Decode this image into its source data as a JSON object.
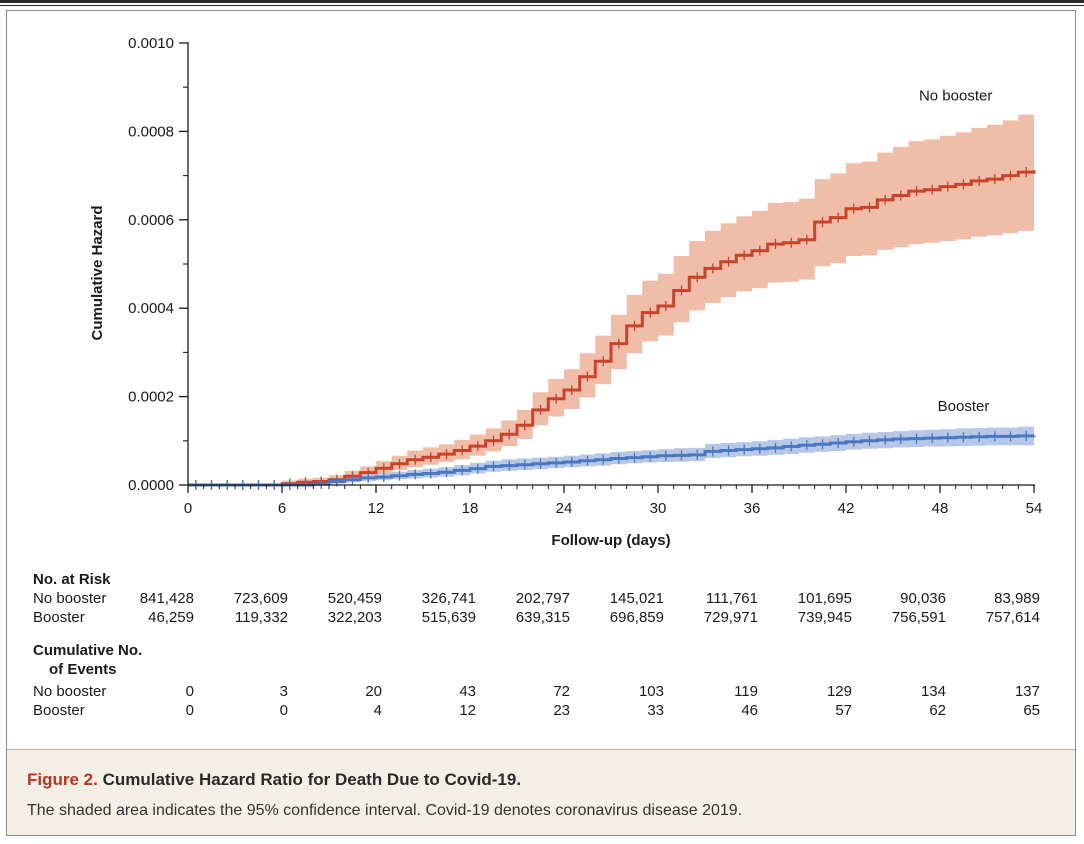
{
  "chart_data": {
    "type": "line",
    "xlabel": "Follow-up (days)",
    "ylabel": "Cumulative Hazard",
    "xlim": [
      0,
      54
    ],
    "ylim": [
      0,
      0.001
    ],
    "xticks": [
      0,
      6,
      12,
      18,
      24,
      30,
      36,
      42,
      48,
      54
    ],
    "yticks": [
      0,
      0.0002,
      0.0004,
      0.0006,
      0.0008,
      0.001
    ],
    "ytick_labels": [
      "0.0000",
      "0.0002",
      "0.0004",
      "0.0006",
      "0.0008",
      "0.0010"
    ],
    "grid": false,
    "series": [
      {
        "name": "No booster",
        "color": "#c8432a",
        "band_color": "#efb9a4",
        "x": [
          0,
          1,
          2,
          3,
          4,
          5,
          6,
          7,
          8,
          9,
          10,
          11,
          12,
          13,
          14,
          15,
          16,
          17,
          18,
          19,
          20,
          21,
          22,
          23,
          24,
          25,
          26,
          27,
          28,
          29,
          30,
          31,
          32,
          33,
          34,
          35,
          36,
          37,
          38,
          39,
          40,
          41,
          42,
          43,
          44,
          45,
          46,
          47,
          48,
          49,
          50,
          51,
          52,
          53,
          54
        ],
        "y": [
          0,
          0,
          0,
          0,
          0,
          0,
          3e-06,
          6e-06,
          8e-06,
          1.2e-05,
          2e-05,
          2.8e-05,
          3.8e-05,
          4.8e-05,
          5.7e-05,
          6.3e-05,
          7e-05,
          7.8e-05,
          8.8e-05,
          0.0001,
          0.000115,
          0.000135,
          0.00017,
          0.000195,
          0.000215,
          0.000245,
          0.00028,
          0.00032,
          0.00036,
          0.00039,
          0.000405,
          0.00044,
          0.00047,
          0.00049,
          0.000505,
          0.00052,
          0.00053,
          0.000545,
          0.000548,
          0.000555,
          0.000595,
          0.000605,
          0.000625,
          0.000628,
          0.000645,
          0.000655,
          0.000665,
          0.000668,
          0.000675,
          0.00068,
          0.000688,
          0.000692,
          0.0007,
          0.000708,
          0.000712
        ],
        "lower": [
          0,
          0,
          0,
          0,
          0,
          0,
          0,
          2e-06,
          4e-06,
          6e-06,
          1.2e-05,
          1.8e-05,
          2.6e-05,
          3.4e-05,
          4e-05,
          4.6e-05,
          5.2e-05,
          5.8e-05,
          6.6e-05,
          7.6e-05,
          8.8e-05,
          0.000104,
          0.000135,
          0.000155,
          0.000172,
          0.000198,
          0.000228,
          0.000262,
          0.000298,
          0.000325,
          0.000338,
          0.000368,
          0.000395,
          0.000412,
          0.000425,
          0.000438,
          0.000445,
          0.000458,
          0.00046,
          0.000465,
          0.000495,
          0.000502,
          0.000518,
          0.00052,
          0.000532,
          0.000538,
          0.000545,
          0.000548,
          0.000552,
          0.000556,
          0.000562,
          0.000565,
          0.00057,
          0.000575,
          0.000578
        ],
        "upper": [
          0,
          0,
          0,
          0,
          0,
          0,
          1e-05,
          1.4e-05,
          1.6e-05,
          2.2e-05,
          3.2e-05,
          4.2e-05,
          5.4e-05,
          6.6e-05,
          7.8e-05,
          8.5e-05,
          9.2e-05,
          0.000102,
          0.000114,
          0.000128,
          0.000146,
          0.00017,
          0.00021,
          0.00024,
          0.000262,
          0.000298,
          0.000338,
          0.000385,
          0.00043,
          0.000462,
          0.000478,
          0.000518,
          0.000552,
          0.000575,
          0.000592,
          0.000608,
          0.00062,
          0.000638,
          0.00064,
          0.000648,
          0.000692,
          0.000705,
          0.000728,
          0.000732,
          0.000752,
          0.000765,
          0.000778,
          0.000782,
          0.00079,
          0.000798,
          0.000808,
          0.000815,
          0.000825,
          0.000838,
          0.000848
        ]
      },
      {
        "name": "Booster",
        "color": "#4a78bf",
        "band_color": "#b4c4e6",
        "x": [
          0,
          1,
          2,
          3,
          4,
          5,
          6,
          7,
          8,
          9,
          10,
          11,
          12,
          13,
          14,
          15,
          16,
          17,
          18,
          19,
          20,
          21,
          22,
          23,
          24,
          25,
          26,
          27,
          28,
          29,
          30,
          31,
          32,
          33,
          34,
          35,
          36,
          37,
          38,
          39,
          40,
          41,
          42,
          43,
          44,
          45,
          46,
          47,
          48,
          49,
          50,
          51,
          52,
          53,
          54
        ],
        "y": [
          0,
          0,
          0,
          0,
          0,
          0,
          0,
          0,
          2e-06,
          8e-06,
          1.2e-05,
          1.6e-05,
          1.8e-05,
          2.1e-05,
          2.4e-05,
          2.6e-05,
          2.9e-05,
          3.3e-05,
          3.7e-05,
          4.2e-05,
          4.4e-05,
          4.6e-05,
          4.8e-05,
          5e-05,
          5.2e-05,
          5.5e-05,
          5.7e-05,
          6e-05,
          6.2e-05,
          6.4e-05,
          6.6e-05,
          6.7e-05,
          6.8e-05,
          7.6e-05,
          7.8e-05,
          8e-05,
          8.2e-05,
          8.4e-05,
          8.7e-05,
          9e-05,
          9.2e-05,
          9.5e-05,
          9.8e-05,
          0.0001,
          0.000102,
          0.000104,
          0.000105,
          0.000106,
          0.000107,
          0.000108,
          0.000109,
          0.00011,
          0.00011,
          0.000111,
          0.000112
        ],
        "lower": [
          0,
          0,
          0,
          0,
          0,
          0,
          0,
          0,
          0,
          3e-06,
          6e-06,
          9e-06,
          1.1e-05,
          1.3e-05,
          1.5e-05,
          1.7e-05,
          1.9e-05,
          2.2e-05,
          2.6e-05,
          3e-05,
          3.2e-05,
          3.4e-05,
          3.6e-05,
          3.8e-05,
          4e-05,
          4.2e-05,
          4.4e-05,
          4.7e-05,
          4.9e-05,
          5.1e-05,
          5.2e-05,
          5.3e-05,
          5.4e-05,
          6.1e-05,
          6.3e-05,
          6.5e-05,
          6.6e-05,
          6.8e-05,
          7e-05,
          7.3e-05,
          7.5e-05,
          7.7e-05,
          8e-05,
          8.2e-05,
          8.3e-05,
          8.5e-05,
          8.6e-05,
          8.7e-05,
          8.7e-05,
          8.8e-05,
          8.9e-05,
          9e-05,
          9e-05,
          9e-05,
          9.1e-05
        ],
        "upper": [
          0,
          0,
          0,
          0,
          0,
          0,
          0,
          4e-06,
          8e-06,
          1.4e-05,
          1.9e-05,
          2.4e-05,
          2.7e-05,
          3e-05,
          3.4e-05,
          3.7e-05,
          4e-05,
          4.5e-05,
          5e-05,
          5.5e-05,
          5.8e-05,
          6e-05,
          6.2e-05,
          6.4e-05,
          6.6e-05,
          6.9e-05,
          7.2e-05,
          7.5e-05,
          7.7e-05,
          7.9e-05,
          8.1e-05,
          8.3e-05,
          8.4e-05,
          9.3e-05,
          9.5e-05,
          9.7e-05,
          9.9e-05,
          0.000102,
          0.000105,
          0.000108,
          0.00011,
          0.000113,
          0.000116,
          0.000118,
          0.00012,
          0.000122,
          0.000124,
          0.000125,
          0.000126,
          0.000128,
          0.000129,
          0.00013,
          0.00013,
          0.000132,
          0.000134
        ]
      }
    ],
    "annotations": [
      {
        "text": "No booster",
        "x": 49,
        "y": 0.00087
      },
      {
        "text": "Booster",
        "x": 49.5,
        "y": 0.000167
      }
    ]
  },
  "risk_table": {
    "title": "No. at Risk",
    "rows": [
      {
        "label": "No booster",
        "values": [
          "841,428",
          "723,609",
          "520,459",
          "326,741",
          "202,797",
          "145,021",
          "111,761",
          "101,695",
          "90,036",
          "83,989"
        ]
      },
      {
        "label": "Booster",
        "values": [
          "46,259",
          "119,332",
          "322,203",
          "515,639",
          "639,315",
          "696,859",
          "729,971",
          "739,945",
          "756,591",
          "757,614"
        ]
      }
    ]
  },
  "events_table": {
    "title_line1": "Cumulative No.",
    "title_line2": "of Events",
    "rows": [
      {
        "label": "No booster",
        "values": [
          "0",
          "3",
          "20",
          "43",
          "72",
          "103",
          "119",
          "129",
          "134",
          "137"
        ]
      },
      {
        "label": "Booster",
        "values": [
          "0",
          "0",
          "4",
          "12",
          "23",
          "33",
          "46",
          "57",
          "62",
          "65"
        ]
      }
    ]
  },
  "caption": {
    "figure_label": "Figure 2.",
    "title": "Cumulative Hazard Ratio for Death Due to Covid-19.",
    "text": "The shaded area indicates the 95% confidence interval. Covid-19 denotes coronavirus disease 2019."
  }
}
